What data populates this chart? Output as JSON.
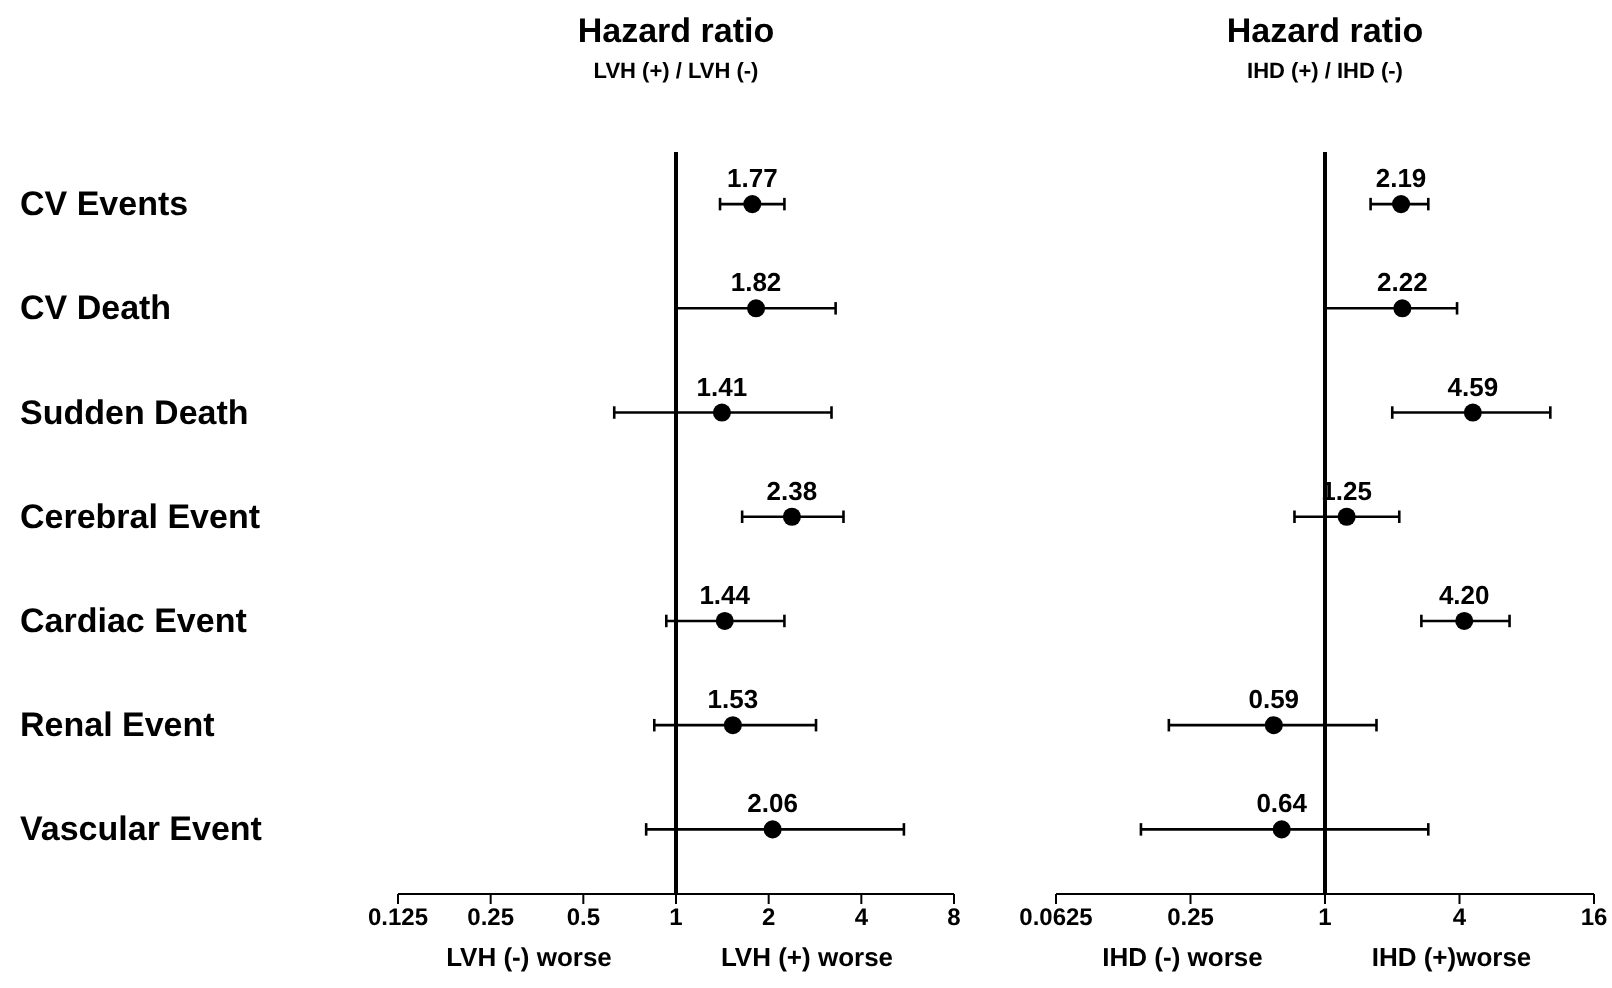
{
  "chart_data": [
    {
      "type": "scatter",
      "orientation": "horizontal",
      "title": "Hazard ratio",
      "subtitle": "LVH (+) / LVH (-)",
      "categories": [
        "CV Events",
        "CV Death",
        "Sudden Death",
        "Cerebral Event",
        "Cardiac Event",
        "Renal Event",
        "Vascular Event"
      ],
      "values": [
        1.77,
        1.82,
        1.41,
        2.38,
        1.44,
        1.53,
        2.06
      ],
      "errors": [
        [
          1.39,
          2.25
        ],
        [
          1.0,
          3.3
        ],
        [
          0.63,
          3.2
        ],
        [
          1.64,
          3.5
        ],
        [
          0.93,
          2.25
        ],
        [
          0.85,
          2.85
        ],
        [
          0.8,
          5.5
        ]
      ],
      "value_labels": [
        "1.77",
        "1.82",
        "1.41",
        "2.38",
        "1.44",
        "1.53",
        "2.06"
      ],
      "color": "#000000",
      "marker": "circle",
      "log": "x",
      "xlim": [
        0.125,
        8
      ],
      "xticks": [
        0.125,
        0.25,
        0.5,
        1,
        2,
        4,
        8
      ],
      "ref_lines": [
        {
          "axis": "x",
          "value": 1,
          "color": "#000000"
        }
      ],
      "annotations": [
        "LVH (-) worse",
        "LVH (+) worse"
      ]
    },
    {
      "type": "scatter",
      "orientation": "horizontal",
      "title": "Hazard ratio",
      "subtitle": "IHD (+) / IHD (-)",
      "categories": [
        null,
        null,
        null,
        null,
        null,
        null,
        null
      ],
      "values": [
        2.19,
        2.22,
        4.59,
        1.25,
        4.2,
        0.59,
        0.64
      ],
      "errors": [
        [
          1.6,
          2.9
        ],
        [
          1.0,
          3.9
        ],
        [
          2.0,
          10.2
        ],
        [
          0.73,
          2.15
        ],
        [
          2.7,
          6.7
        ],
        [
          0.2,
          1.7
        ],
        [
          0.15,
          2.9
        ]
      ],
      "value_labels": [
        "2.19",
        "2.22",
        "4.59",
        "1.25",
        "4.20",
        "0.59",
        "0.64"
      ],
      "color": "#000000",
      "marker": "circle",
      "log": "x",
      "xlim": [
        0.0625,
        16
      ],
      "xticks": [
        0.0625,
        0.25,
        1,
        4,
        16
      ],
      "ref_lines": [
        {
          "axis": "x",
          "value": 1,
          "color": "#000000"
        }
      ],
      "annotations": [
        "IHD (-) worse",
        "IHD (+)worse"
      ]
    }
  ]
}
